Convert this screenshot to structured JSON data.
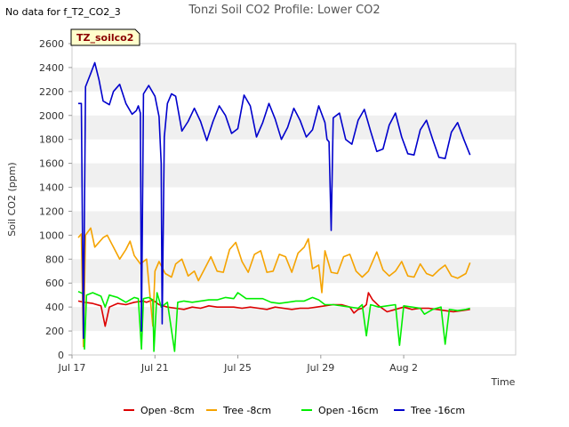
{
  "page": {
    "corner_note": "No data for f_T2_CO2_3"
  },
  "chart_data": {
    "type": "line",
    "title": "Tonzi Soil CO2 Profile: Lower CO2",
    "xlabel": "Time",
    "ylabel": "Soil CO2 (ppm)",
    "tag": "TZ_soilco2",
    "x_start": "Jul 17",
    "x_unit": "days",
    "xlim": [
      0,
      21.4
    ],
    "ylim": [
      0,
      2600
    ],
    "yticks": [
      0,
      200,
      400,
      600,
      800,
      1000,
      1200,
      1400,
      1600,
      1800,
      2000,
      2200,
      2400,
      2600
    ],
    "xticks": [
      {
        "value": 0,
        "label": "Jul 17"
      },
      {
        "value": 4,
        "label": "Jul 21"
      },
      {
        "value": 8,
        "label": "Jul 25"
      },
      {
        "value": 12,
        "label": "Jul 29"
      },
      {
        "value": 16,
        "label": "Aug 2"
      }
    ],
    "grid": "horizontal bands",
    "legend_position": "bottom",
    "series": [
      {
        "name": "Open -8cm",
        "color": "#dd0000",
        "values": [
          [
            0.3,
            450
          ],
          [
            0.6,
            440
          ],
          [
            1.0,
            430
          ],
          [
            1.4,
            410
          ],
          [
            1.6,
            240
          ],
          [
            1.8,
            400
          ],
          [
            2.2,
            430
          ],
          [
            2.6,
            420
          ],
          [
            3.0,
            440
          ],
          [
            3.4,
            450
          ],
          [
            3.6,
            440
          ],
          [
            3.9,
            460
          ],
          [
            4.2,
            420
          ],
          [
            4.6,
            400
          ],
          [
            5.0,
            390
          ],
          [
            5.4,
            380
          ],
          [
            5.8,
            400
          ],
          [
            6.2,
            390
          ],
          [
            6.6,
            410
          ],
          [
            7.0,
            400
          ],
          [
            7.4,
            400
          ],
          [
            7.8,
            400
          ],
          [
            8.2,
            390
          ],
          [
            8.6,
            400
          ],
          [
            9.0,
            390
          ],
          [
            9.4,
            380
          ],
          [
            9.8,
            400
          ],
          [
            10.2,
            390
          ],
          [
            10.6,
            380
          ],
          [
            11.0,
            390
          ],
          [
            11.4,
            390
          ],
          [
            11.8,
            400
          ],
          [
            12.2,
            410
          ],
          [
            12.6,
            420
          ],
          [
            13.0,
            420
          ],
          [
            13.4,
            400
          ],
          [
            13.6,
            350
          ],
          [
            13.8,
            380
          ],
          [
            14.0,
            390
          ],
          [
            14.2,
            420
          ],
          [
            14.3,
            520
          ],
          [
            14.5,
            460
          ],
          [
            14.8,
            410
          ],
          [
            15.2,
            360
          ],
          [
            15.6,
            380
          ],
          [
            16.0,
            400
          ],
          [
            16.4,
            380
          ],
          [
            16.8,
            390
          ],
          [
            17.2,
            390
          ],
          [
            17.6,
            380
          ],
          [
            18.0,
            370
          ],
          [
            18.4,
            360
          ],
          [
            18.8,
            370
          ],
          [
            19.2,
            380
          ]
        ]
      },
      {
        "name": "Tree -8cm",
        "color": "#f5a300",
        "values": [
          [
            0.3,
            980
          ],
          [
            0.45,
            1010
          ],
          [
            0.55,
            70
          ],
          [
            0.65,
            1000
          ],
          [
            0.9,
            1060
          ],
          [
            1.1,
            900
          ],
          [
            1.5,
            980
          ],
          [
            1.7,
            1000
          ],
          [
            2.0,
            900
          ],
          [
            2.3,
            800
          ],
          [
            2.6,
            880
          ],
          [
            2.8,
            950
          ],
          [
            3.0,
            830
          ],
          [
            3.3,
            760
          ],
          [
            3.6,
            800
          ],
          [
            3.9,
            240
          ],
          [
            4.0,
            700
          ],
          [
            4.2,
            780
          ],
          [
            4.5,
            680
          ],
          [
            4.8,
            650
          ],
          [
            5.0,
            760
          ],
          [
            5.3,
            800
          ],
          [
            5.6,
            660
          ],
          [
            5.9,
            700
          ],
          [
            6.1,
            620
          ],
          [
            6.4,
            720
          ],
          [
            6.7,
            820
          ],
          [
            7.0,
            700
          ],
          [
            7.3,
            690
          ],
          [
            7.6,
            880
          ],
          [
            7.9,
            940
          ],
          [
            8.2,
            780
          ],
          [
            8.5,
            690
          ],
          [
            8.8,
            840
          ],
          [
            9.1,
            870
          ],
          [
            9.4,
            690
          ],
          [
            9.7,
            700
          ],
          [
            10.0,
            840
          ],
          [
            10.3,
            820
          ],
          [
            10.6,
            690
          ],
          [
            10.9,
            850
          ],
          [
            11.2,
            900
          ],
          [
            11.4,
            970
          ],
          [
            11.6,
            720
          ],
          [
            11.9,
            750
          ],
          [
            12.05,
            520
          ],
          [
            12.2,
            870
          ],
          [
            12.5,
            690
          ],
          [
            12.8,
            680
          ],
          [
            13.1,
            820
          ],
          [
            13.4,
            840
          ],
          [
            13.7,
            700
          ],
          [
            14.0,
            650
          ],
          [
            14.3,
            700
          ],
          [
            14.7,
            860
          ],
          [
            15.0,
            710
          ],
          [
            15.3,
            660
          ],
          [
            15.6,
            700
          ],
          [
            15.9,
            780
          ],
          [
            16.2,
            660
          ],
          [
            16.5,
            650
          ],
          [
            16.8,
            760
          ],
          [
            17.1,
            680
          ],
          [
            17.4,
            660
          ],
          [
            17.7,
            710
          ],
          [
            18.0,
            750
          ],
          [
            18.3,
            660
          ],
          [
            18.6,
            640
          ],
          [
            19.0,
            680
          ],
          [
            19.2,
            770
          ]
        ]
      },
      {
        "name": "Open -16cm",
        "color": "#00ee00",
        "values": [
          [
            0.3,
            530
          ],
          [
            0.55,
            510
          ],
          [
            0.6,
            50
          ],
          [
            0.7,
            500
          ],
          [
            1.0,
            520
          ],
          [
            1.4,
            490
          ],
          [
            1.6,
            400
          ],
          [
            1.8,
            500
          ],
          [
            2.2,
            480
          ],
          [
            2.6,
            440
          ],
          [
            2.8,
            460
          ],
          [
            3.0,
            480
          ],
          [
            3.2,
            470
          ],
          [
            3.35,
            50
          ],
          [
            3.45,
            470
          ],
          [
            3.7,
            480
          ],
          [
            3.9,
            460
          ],
          [
            3.95,
            30
          ],
          [
            4.1,
            520
          ],
          [
            4.3,
            400
          ],
          [
            4.6,
            440
          ],
          [
            4.95,
            30
          ],
          [
            5.1,
            440
          ],
          [
            5.4,
            450
          ],
          [
            5.8,
            440
          ],
          [
            6.2,
            450
          ],
          [
            6.6,
            460
          ],
          [
            7.0,
            460
          ],
          [
            7.4,
            480
          ],
          [
            7.8,
            470
          ],
          [
            8.0,
            520
          ],
          [
            8.4,
            470
          ],
          [
            8.8,
            470
          ],
          [
            9.2,
            470
          ],
          [
            9.6,
            440
          ],
          [
            10.0,
            430
          ],
          [
            10.4,
            440
          ],
          [
            10.8,
            450
          ],
          [
            11.2,
            450
          ],
          [
            11.6,
            480
          ],
          [
            11.9,
            460
          ],
          [
            12.2,
            420
          ],
          [
            12.6,
            420
          ],
          [
            13.0,
            410
          ],
          [
            13.4,
            400
          ],
          [
            13.8,
            390
          ],
          [
            14.0,
            420
          ],
          [
            14.2,
            160
          ],
          [
            14.4,
            420
          ],
          [
            14.8,
            400
          ],
          [
            15.2,
            410
          ],
          [
            15.6,
            420
          ],
          [
            15.8,
            80
          ],
          [
            16.0,
            410
          ],
          [
            16.4,
            400
          ],
          [
            16.8,
            390
          ],
          [
            17.0,
            340
          ],
          [
            17.4,
            380
          ],
          [
            17.8,
            400
          ],
          [
            18.0,
            90
          ],
          [
            18.2,
            380
          ],
          [
            18.6,
            370
          ],
          [
            19.0,
            380
          ],
          [
            19.2,
            390
          ]
        ]
      },
      {
        "name": "Tree -16cm",
        "color": "#0000cc",
        "values": [
          [
            0.3,
            2100
          ],
          [
            0.45,
            2100
          ],
          [
            0.55,
            140
          ],
          [
            0.65,
            2240
          ],
          [
            0.9,
            2350
          ],
          [
            1.1,
            2440
          ],
          [
            1.3,
            2300
          ],
          [
            1.5,
            2120
          ],
          [
            1.8,
            2090
          ],
          [
            2.0,
            2200
          ],
          [
            2.3,
            2260
          ],
          [
            2.6,
            2100
          ],
          [
            2.9,
            2010
          ],
          [
            3.1,
            2040
          ],
          [
            3.2,
            2080
          ],
          [
            3.3,
            2020
          ],
          [
            3.35,
            200
          ],
          [
            3.45,
            2180
          ],
          [
            3.7,
            2250
          ],
          [
            4.0,
            2160
          ],
          [
            4.2,
            1990
          ],
          [
            4.3,
            1600
          ],
          [
            4.35,
            260
          ],
          [
            4.45,
            1820
          ],
          [
            4.6,
            2100
          ],
          [
            4.8,
            2180
          ],
          [
            5.0,
            2160
          ],
          [
            5.3,
            1870
          ],
          [
            5.6,
            1950
          ],
          [
            5.9,
            2060
          ],
          [
            6.2,
            1950
          ],
          [
            6.5,
            1790
          ],
          [
            6.8,
            1950
          ],
          [
            7.1,
            2080
          ],
          [
            7.4,
            2000
          ],
          [
            7.7,
            1850
          ],
          [
            8.0,
            1890
          ],
          [
            8.3,
            2170
          ],
          [
            8.6,
            2080
          ],
          [
            8.9,
            1820
          ],
          [
            9.2,
            1940
          ],
          [
            9.5,
            2100
          ],
          [
            9.8,
            1970
          ],
          [
            10.1,
            1800
          ],
          [
            10.4,
            1900
          ],
          [
            10.7,
            2060
          ],
          [
            11.0,
            1960
          ],
          [
            11.3,
            1820
          ],
          [
            11.6,
            1880
          ],
          [
            11.9,
            2080
          ],
          [
            12.2,
            1940
          ],
          [
            12.3,
            1800
          ],
          [
            12.4,
            1780
          ],
          [
            12.5,
            1040
          ],
          [
            12.6,
            1980
          ],
          [
            12.9,
            2020
          ],
          [
            13.2,
            1800
          ],
          [
            13.5,
            1760
          ],
          [
            13.8,
            1960
          ],
          [
            14.1,
            2050
          ],
          [
            14.4,
            1870
          ],
          [
            14.7,
            1700
          ],
          [
            15.0,
            1720
          ],
          [
            15.3,
            1920
          ],
          [
            15.6,
            2020
          ],
          [
            15.9,
            1820
          ],
          [
            16.2,
            1680
          ],
          [
            16.5,
            1670
          ],
          [
            16.8,
            1880
          ],
          [
            17.1,
            1960
          ],
          [
            17.4,
            1800
          ],
          [
            17.7,
            1650
          ],
          [
            18.0,
            1640
          ],
          [
            18.3,
            1860
          ],
          [
            18.6,
            1940
          ],
          [
            18.9,
            1800
          ],
          [
            19.2,
            1670
          ]
        ]
      }
    ]
  }
}
